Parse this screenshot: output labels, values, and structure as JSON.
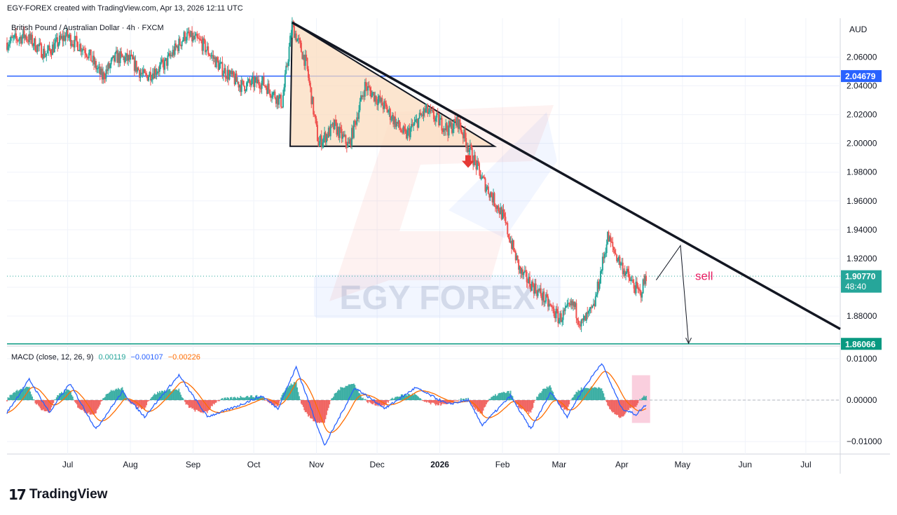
{
  "header": {
    "credit": "EGY-FOREX created with TradingView.com, Apr 13, 2026 12:11 UTC"
  },
  "symbol_label": "British Pound / Australian Dollar · 4h · FXCM",
  "footer": {
    "brand": "TradingView",
    "logo_icon": "tradingview-logo-icon"
  },
  "watermark": "EGY FOREX",
  "annotation": {
    "text": "sell",
    "color": "#e91e63"
  },
  "colors": {
    "up": "#26a69a",
    "down": "#ef5350",
    "resistance": "#2962ff",
    "support": "#089981",
    "triangle_fill": "#fbdcbf",
    "macd_line": "#2962ff",
    "signal_line": "#ff6d00"
  },
  "chart_data": [
    {
      "type": "candlestick",
      "currency": "AUD",
      "ylim": [
        1.862,
        2.087
      ],
      "y_ticks": [
        "2.06000",
        "2.04000",
        "2.02000",
        "2.00000",
        "1.98000",
        "1.96000",
        "1.94000",
        "1.92000",
        "1.90000",
        "1.88000"
      ],
      "x_ticks": [
        "Jul",
        "Aug",
        "Sep",
        "Oct",
        "Nov",
        "Dec",
        "2026",
        "Feb",
        "Mar",
        "Apr",
        "May",
        "Jun",
        "Jul"
      ],
      "x_domain": [
        "2025-06-01",
        "2026-07-18"
      ],
      "price_path": [
        [
          "2025-06-01",
          2.07
        ],
        [
          "2025-06-10",
          2.075
        ],
        [
          "2025-06-20",
          2.062
        ],
        [
          "2025-06-30",
          2.075
        ],
        [
          "2025-07-10",
          2.065
        ],
        [
          "2025-07-18",
          2.046
        ],
        [
          "2025-07-25",
          2.06
        ],
        [
          "2025-08-01",
          2.058
        ],
        [
          "2025-08-08",
          2.046
        ],
        [
          "2025-08-18",
          2.055
        ],
        [
          "2025-08-28",
          2.075
        ],
        [
          "2025-09-05",
          2.07
        ],
        [
          "2025-09-15",
          2.052
        ],
        [
          "2025-09-25",
          2.04
        ],
        [
          "2025-10-05",
          2.043
        ],
        [
          "2025-10-15",
          2.028
        ],
        [
          "2025-10-20",
          2.082
        ],
        [
          "2025-10-27",
          2.055
        ],
        [
          "2025-11-02",
          2.0
        ],
        [
          "2025-11-10",
          2.012
        ],
        [
          "2025-11-17",
          1.998
        ],
        [
          "2025-11-25",
          2.04
        ],
        [
          "2025-12-05",
          2.025
        ],
        [
          "2025-12-15",
          2.005
        ],
        [
          "2025-12-25",
          2.023
        ],
        [
          "2026-01-05",
          2.01
        ],
        [
          "2026-01-10",
          2.015
        ],
        [
          "2026-01-15",
          1.998
        ],
        [
          "2026-01-22",
          1.975
        ],
        [
          "2026-02-01",
          1.95
        ],
        [
          "2026-02-10",
          1.91
        ],
        [
          "2026-02-20",
          1.895
        ],
        [
          "2026-03-01",
          1.878
        ],
        [
          "2026-03-08",
          1.888
        ],
        [
          "2026-03-12",
          1.874
        ],
        [
          "2026-03-18",
          1.885
        ],
        [
          "2026-03-25",
          1.935
        ],
        [
          "2026-03-30",
          1.92
        ],
        [
          "2026-04-05",
          1.905
        ],
        [
          "2026-04-10",
          1.895
        ],
        [
          "2026-04-13",
          1.9077
        ]
      ],
      "price_labels": {
        "resistance": {
          "value": 2.04679,
          "label": "2.04679"
        },
        "last": {
          "value": 1.9077,
          "label": "1.90770",
          "countdown": "48:40"
        },
        "support": {
          "value": 1.86066,
          "label": "1.86066"
        }
      },
      "triangle": {
        "apex_top": [
          "2025-10-20",
          2.084
        ],
        "base": 1.998,
        "base_start": "2025-10-19",
        "apex_right": [
          "2026-01-28",
          1.998
        ]
      },
      "trendline": {
        "from": [
          "2025-10-20",
          2.084
        ],
        "to": [
          "2026-07-18",
          1.871
        ]
      },
      "down_arrow": [
        "2026-01-15",
        1.985
      ],
      "projection": [
        [
          "2026-04-18",
          1.905
        ],
        [
          "2026-04-30",
          1.929
        ],
        [
          "2026-05-04",
          1.861
        ]
      ]
    },
    {
      "type": "macd",
      "legend": {
        "label": "MACD (close, 12, 26, 9)",
        "histogram": "0.00119",
        "macd": "−0.00107",
        "signal": "−0.00226"
      },
      "ylim": [
        -0.013,
        0.012
      ],
      "y_ticks": [
        "0.01000",
        "0.00000",
        "−0.01000"
      ],
      "macd_path": [
        [
          "2025-06-01",
          -0.003
        ],
        [
          "2025-06-12",
          0.005
        ],
        [
          "2025-06-22",
          -0.003
        ],
        [
          "2025-07-02",
          0.004
        ],
        [
          "2025-07-15",
          -0.007
        ],
        [
          "2025-07-28",
          0.002
        ],
        [
          "2025-08-08",
          -0.004
        ],
        [
          "2025-08-25",
          0.006
        ],
        [
          "2025-09-08",
          -0.004
        ],
        [
          "2025-09-20",
          -0.002
        ],
        [
          "2025-10-05",
          0.001
        ],
        [
          "2025-10-13",
          -0.002
        ],
        [
          "2025-10-22",
          0.008
        ],
        [
          "2025-11-05",
          -0.011
        ],
        [
          "2025-11-20",
          0.003
        ],
        [
          "2025-12-05",
          -0.002
        ],
        [
          "2025-12-20",
          0.003
        ],
        [
          "2026-01-05",
          -0.001
        ],
        [
          "2026-01-15",
          0.0
        ],
        [
          "2026-01-22",
          -0.006
        ],
        [
          "2026-02-05",
          0.001
        ],
        [
          "2026-02-15",
          -0.007
        ],
        [
          "2026-02-25",
          0.002
        ],
        [
          "2026-03-05",
          -0.004
        ],
        [
          "2026-03-12",
          0.002
        ],
        [
          "2026-03-22",
          0.009
        ],
        [
          "2026-04-01",
          -0.002
        ],
        [
          "2026-04-08",
          -0.0035
        ],
        [
          "2026-04-13",
          -0.00107
        ]
      ],
      "highlight": {
        "from": "2026-04-06",
        "to": "2026-04-15",
        "low": -0.0055,
        "high": 0.006
      }
    }
  ]
}
